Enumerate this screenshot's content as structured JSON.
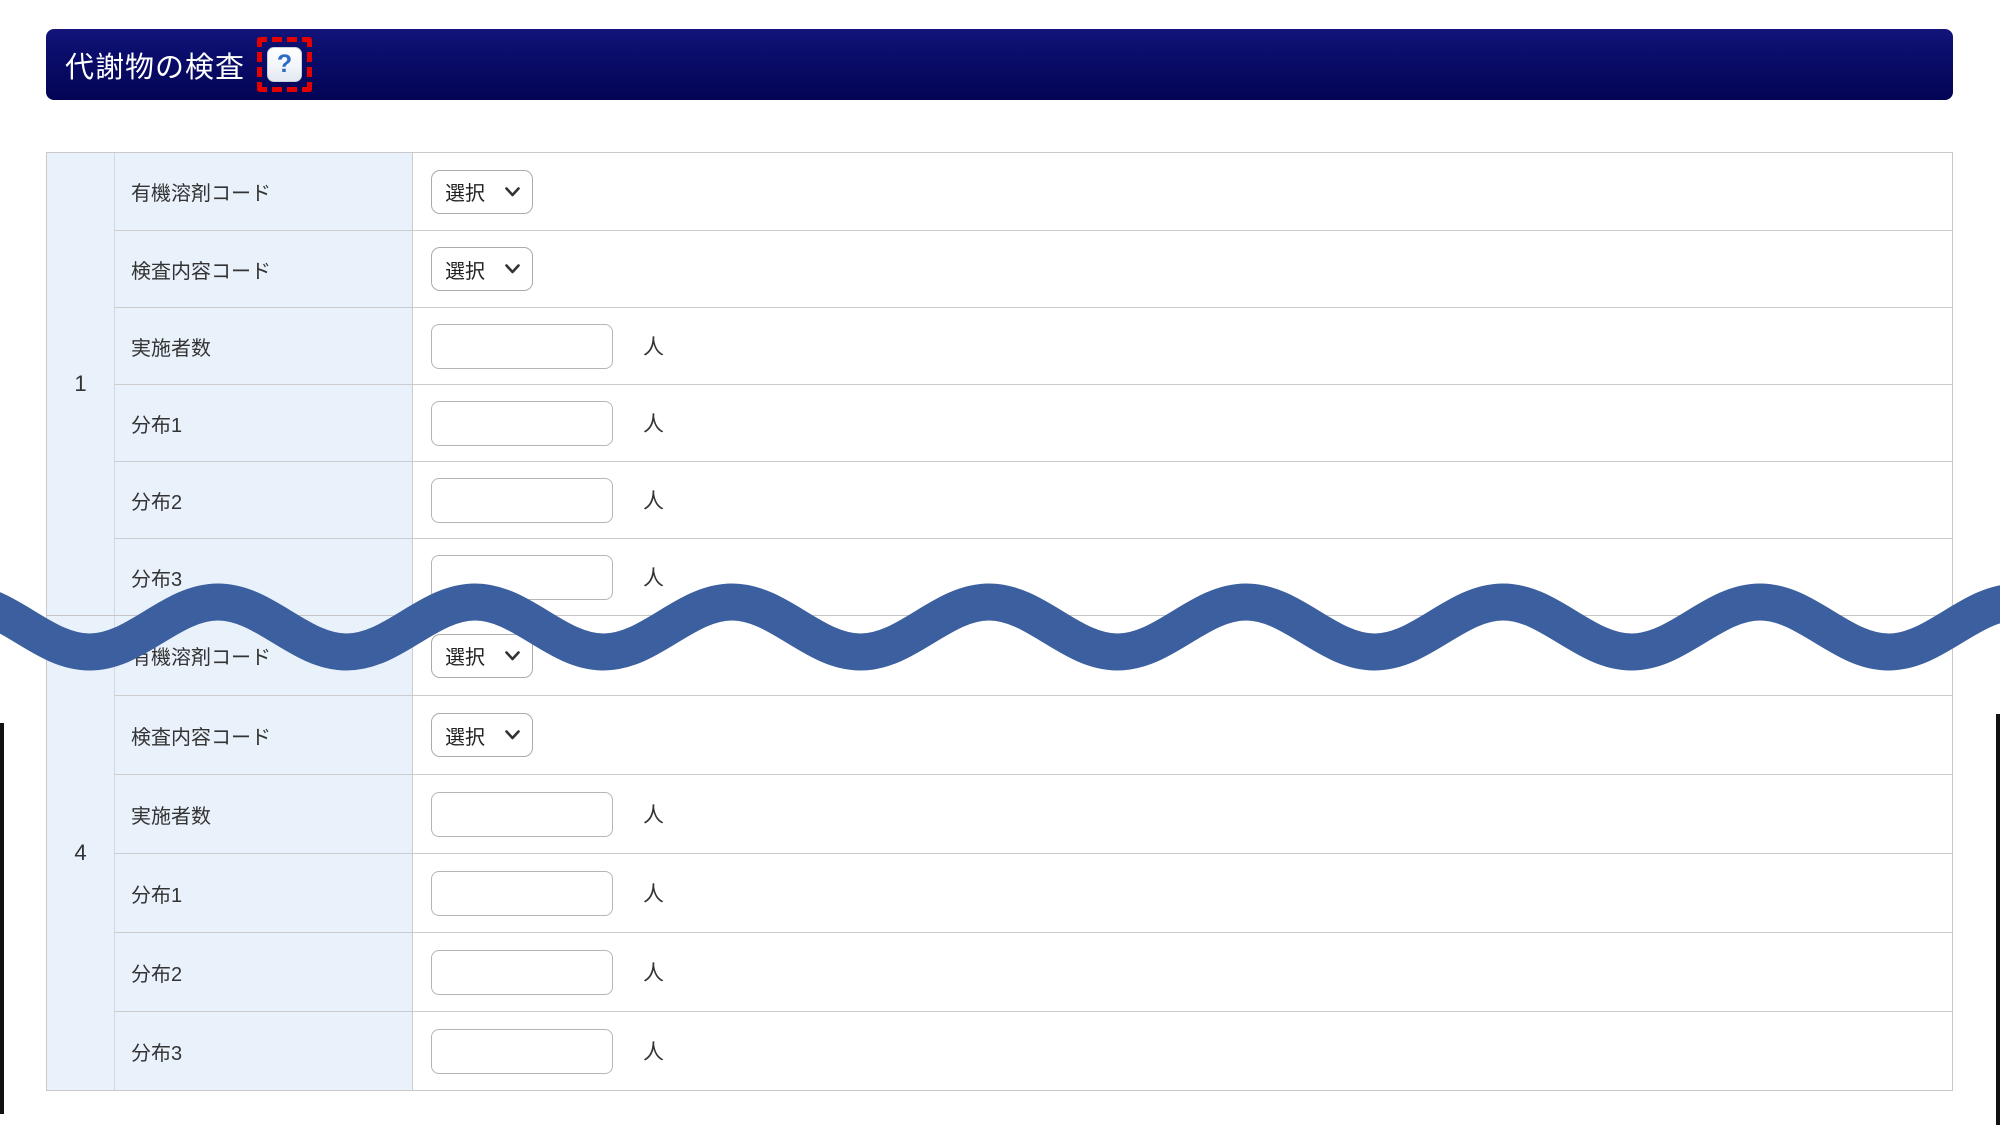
{
  "header": {
    "title": "代謝物の検査",
    "help_glyph": "?",
    "bar_color": "#0a0d6b",
    "annotation_color": "#e50000"
  },
  "table": {
    "select_label": "選択",
    "groups": [
      {
        "number": "1",
        "rows": [
          {
            "label": "有機溶剤コード",
            "control": "select"
          },
          {
            "label": "検査内容コード",
            "control": "select"
          },
          {
            "label": "実施者数",
            "control": "input",
            "suffix": "人"
          },
          {
            "label": "分布1",
            "control": "input",
            "suffix": "人"
          },
          {
            "label": "分布2",
            "control": "input",
            "suffix": "人"
          },
          {
            "label": "分布3",
            "control": "input",
            "suffix": "人"
          }
        ]
      },
      {
        "number": "4",
        "rows": [
          {
            "label": "有機溶剤コード",
            "control": "select"
          },
          {
            "label": "検査内容コード",
            "control": "select"
          },
          {
            "label": "実施者数",
            "control": "input",
            "suffix": "人"
          },
          {
            "label": "分布1",
            "control": "input",
            "suffix": "人"
          },
          {
            "label": "分布2",
            "control": "input",
            "suffix": "人"
          },
          {
            "label": "分布3",
            "control": "input",
            "suffix": "人"
          }
        ]
      }
    ]
  },
  "decoration": {
    "wave_color": "#3b5f9f",
    "wave_meaning": "rows 2-3 omitted",
    "cell_bg": "#e9f1fb"
  }
}
